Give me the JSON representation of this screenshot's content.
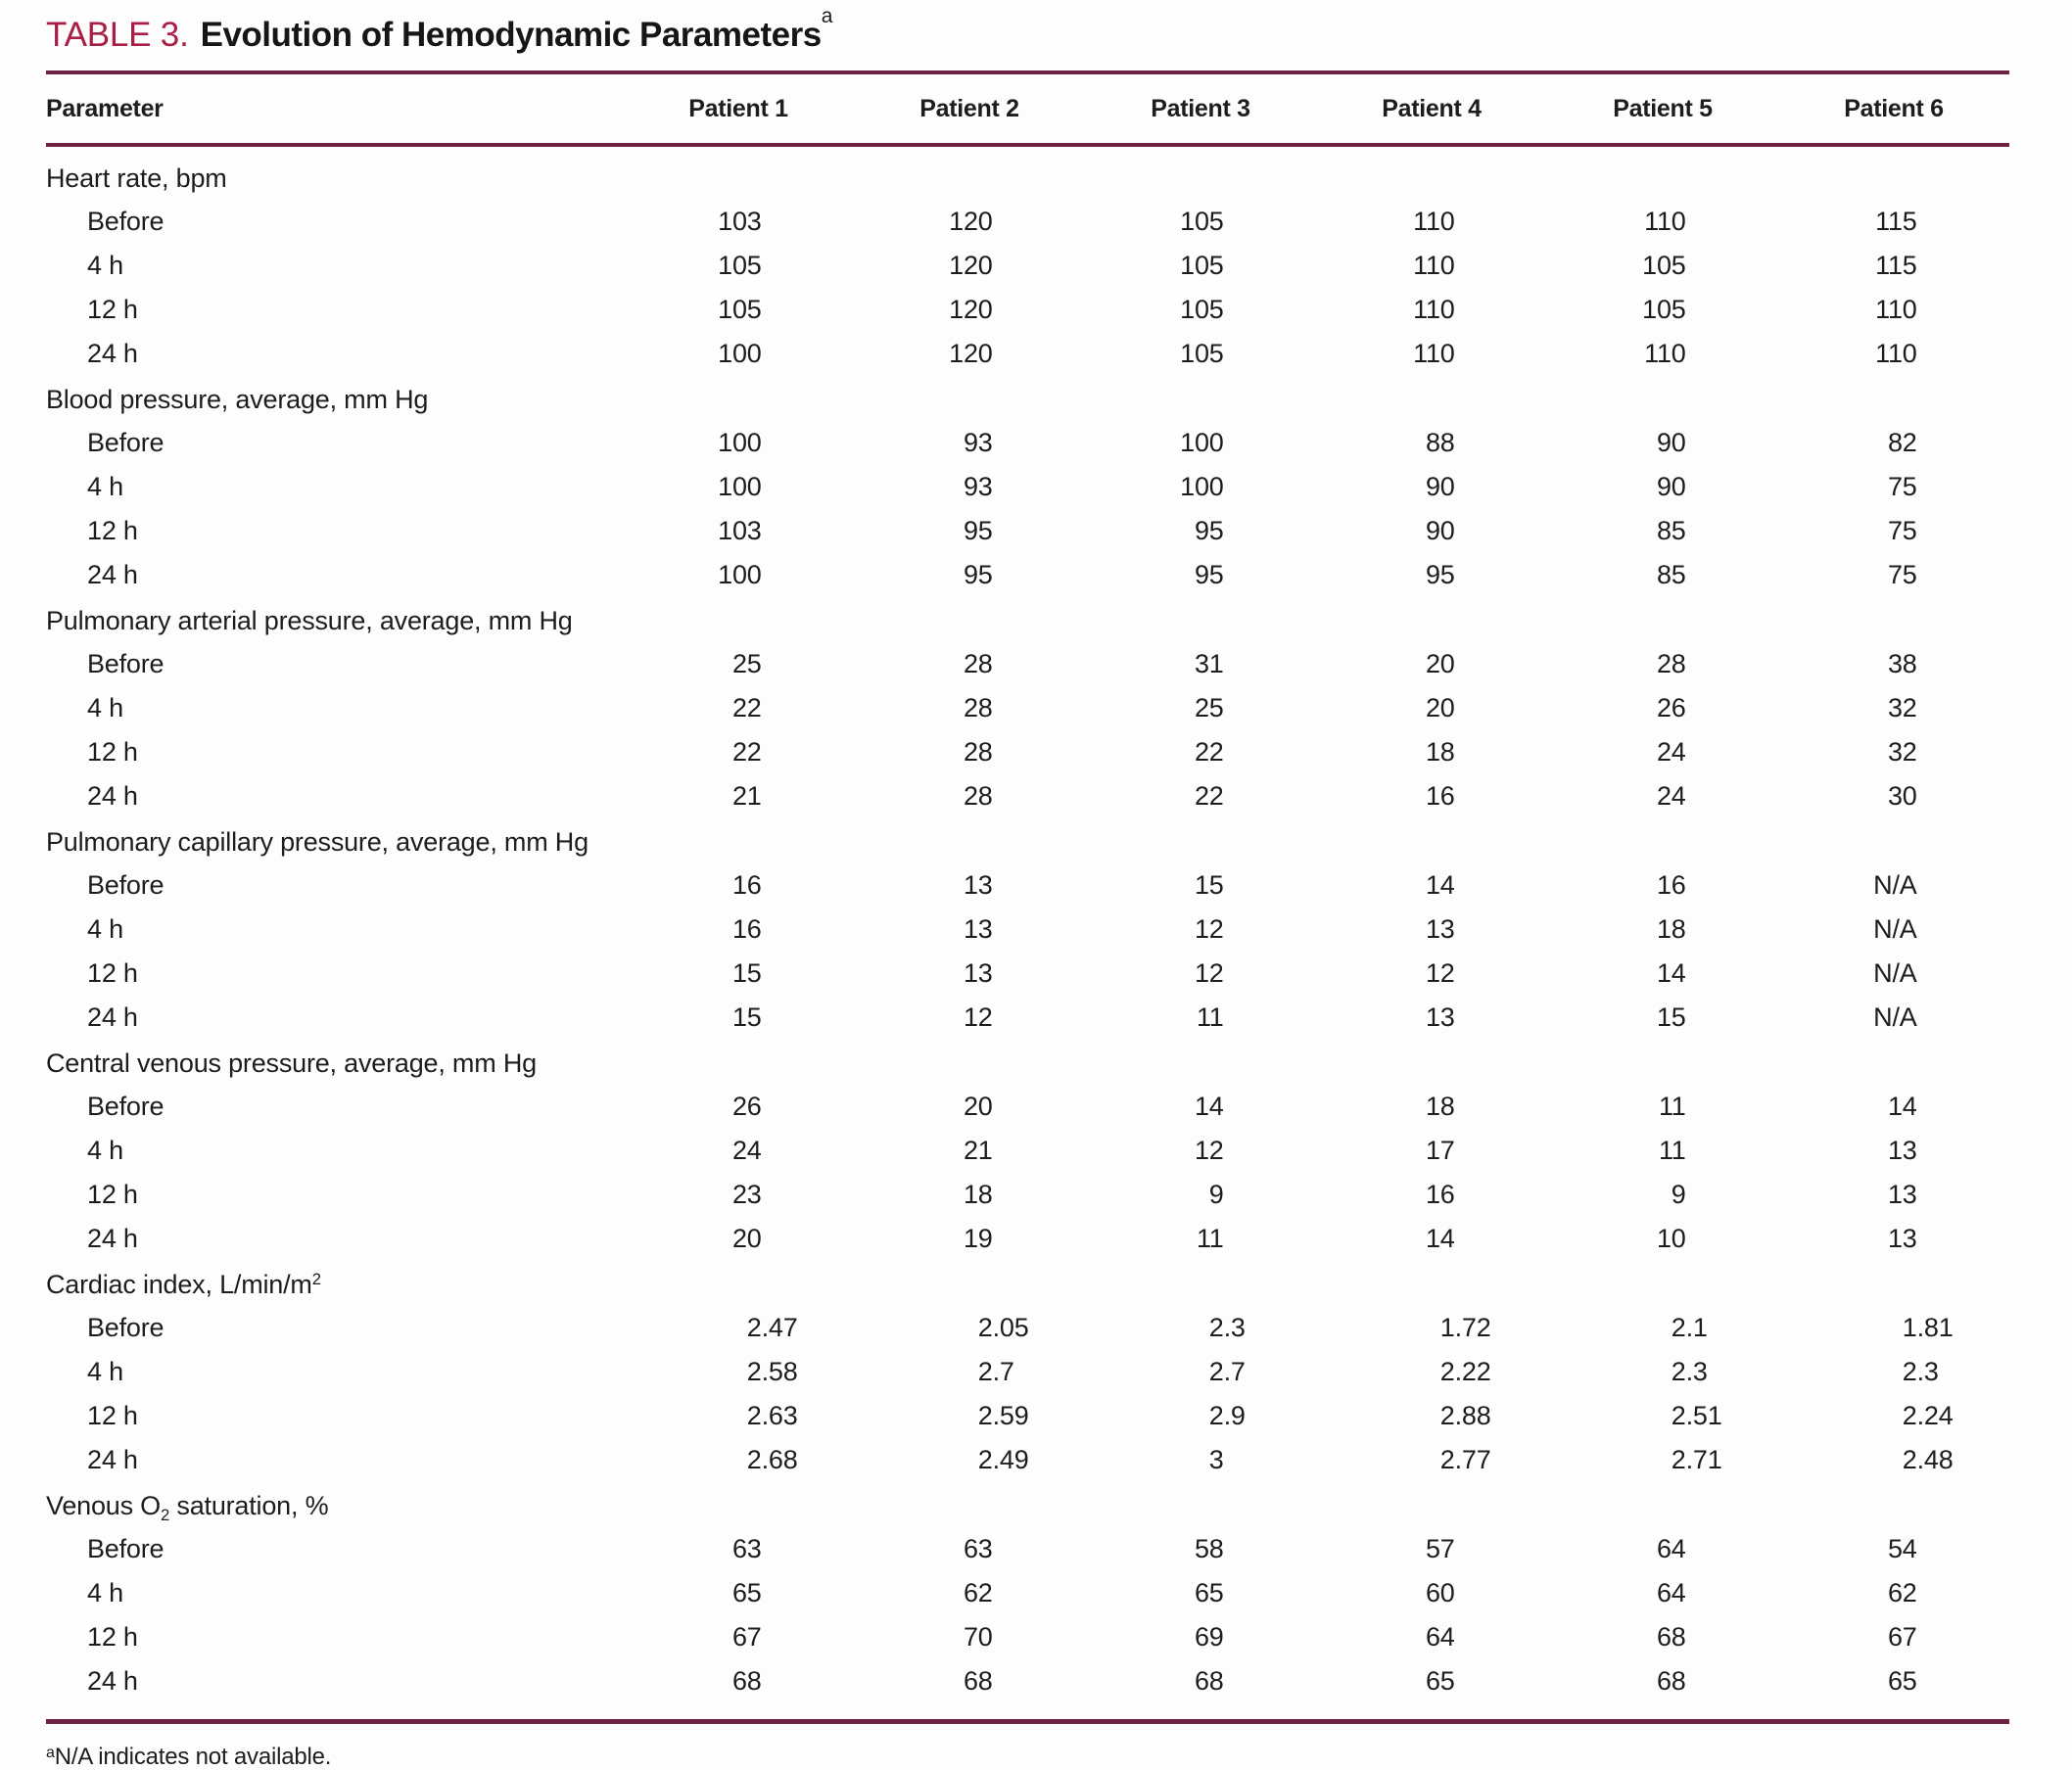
{
  "colors": {
    "accent_red": "#a91e45",
    "rule_maroon": "#6e2242",
    "text": "#1d1d1f",
    "background": "#fdfdfe"
  },
  "title": {
    "label": "TABLE 3.",
    "text": "Evolution of Hemodynamic Parameters",
    "footnote_marker": "a"
  },
  "table": {
    "columns": [
      "Parameter",
      "Patient 1",
      "Patient 2",
      "Patient 3",
      "Patient 4",
      "Patient 5",
      "Patient 6"
    ],
    "sections": [
      {
        "name_pre": "Heart rate, bpm",
        "name_sub": "",
        "name_sup": "",
        "name_post": "",
        "rows": [
          {
            "label": "Before",
            "values": [
              "103",
              "120",
              "105",
              "110",
              "110",
              "115"
            ]
          },
          {
            "label": "4 h",
            "values": [
              "105",
              "120",
              "105",
              "110",
              "105",
              "115"
            ]
          },
          {
            "label": "12 h",
            "values": [
              "105",
              "120",
              "105",
              "110",
              "105",
              "110"
            ]
          },
          {
            "label": "24 h",
            "values": [
              "100",
              "120",
              "105",
              "110",
              "110",
              "110"
            ]
          }
        ]
      },
      {
        "name_pre": "Blood pressure, average, mm Hg",
        "name_sub": "",
        "name_sup": "",
        "name_post": "",
        "rows": [
          {
            "label": "Before",
            "values": [
              "100",
              "93",
              "100",
              "88",
              "90",
              "82"
            ]
          },
          {
            "label": "4 h",
            "values": [
              "100",
              "93",
              "100",
              "90",
              "90",
              "75"
            ]
          },
          {
            "label": "12 h",
            "values": [
              "103",
              "95",
              "95",
              "90",
              "85",
              "75"
            ]
          },
          {
            "label": "24 h",
            "values": [
              "100",
              "95",
              "95",
              "95",
              "85",
              "75"
            ]
          }
        ]
      },
      {
        "name_pre": "Pulmonary arterial pressure, average, mm Hg",
        "name_sub": "",
        "name_sup": "",
        "name_post": "",
        "rows": [
          {
            "label": "Before",
            "values": [
              "25",
              "28",
              "31",
              "20",
              "28",
              "38"
            ]
          },
          {
            "label": "4 h",
            "values": [
              "22",
              "28",
              "25",
              "20",
              "26",
              "32"
            ]
          },
          {
            "label": "12 h",
            "values": [
              "22",
              "28",
              "22",
              "18",
              "24",
              "32"
            ]
          },
          {
            "label": "24 h",
            "values": [
              "21",
              "28",
              "22",
              "16",
              "24",
              "30"
            ]
          }
        ]
      },
      {
        "name_pre": "Pulmonary capillary pressure, average, mm Hg",
        "name_sub": "",
        "name_sup": "",
        "name_post": "",
        "rows": [
          {
            "label": "Before",
            "values": [
              "16",
              "13",
              "15",
              "14",
              "16",
              "N/A"
            ]
          },
          {
            "label": "4 h",
            "values": [
              "16",
              "13",
              "12",
              "13",
              "18",
              "N/A"
            ]
          },
          {
            "label": "12 h",
            "values": [
              "15",
              "13",
              "12",
              "12",
              "14",
              "N/A"
            ]
          },
          {
            "label": "24 h",
            "values": [
              "15",
              "12",
              "11",
              "13",
              "15",
              "N/A"
            ]
          }
        ]
      },
      {
        "name_pre": "Central venous pressure, average, mm Hg",
        "name_sub": "",
        "name_sup": "",
        "name_post": "",
        "rows": [
          {
            "label": "Before",
            "values": [
              "26",
              "20",
              "14",
              "18",
              "11",
              "14"
            ]
          },
          {
            "label": "4 h",
            "values": [
              "24",
              "21",
              "12",
              "17",
              "11",
              "13"
            ]
          },
          {
            "label": "12 h",
            "values": [
              "23",
              "18",
              "9",
              "16",
              "9",
              "13"
            ]
          },
          {
            "label": "24 h",
            "values": [
              "20",
              "19",
              "11",
              "14",
              "10",
              "13"
            ]
          }
        ]
      },
      {
        "name_pre": "Cardiac index, L/min/m",
        "name_sub": "",
        "name_sup": "2",
        "name_post": "",
        "rows": [
          {
            "label": "Before",
            "values": [
              "2.47",
              "2.05",
              "2.3",
              "1.72",
              "2.1",
              "1.81"
            ]
          },
          {
            "label": "4 h",
            "values": [
              "2.58",
              "2.7",
              "2.7",
              "2.22",
              "2.3",
              "2.3"
            ]
          },
          {
            "label": "12 h",
            "values": [
              "2.63",
              "2.59",
              "2.9",
              "2.88",
              "2.51",
              "2.24"
            ]
          },
          {
            "label": "24 h",
            "values": [
              "2.68",
              "2.49",
              "3",
              "2.77",
              "2.71",
              "2.48"
            ]
          }
        ]
      },
      {
        "name_pre": "Venous O",
        "name_sub": "2",
        "name_sup": "",
        "name_post": " saturation, %",
        "rows": [
          {
            "label": "Before",
            "values": [
              "63",
              "63",
              "58",
              "57",
              "64",
              "54"
            ]
          },
          {
            "label": "4 h",
            "values": [
              "65",
              "62",
              "65",
              "60",
              "64",
              "62"
            ]
          },
          {
            "label": "12 h",
            "values": [
              "67",
              "70",
              "69",
              "64",
              "68",
              "67"
            ]
          },
          {
            "label": "24 h",
            "values": [
              "68",
              "68",
              "68",
              "65",
              "68",
              "65"
            ]
          }
        ]
      }
    ]
  },
  "footnote": {
    "marker": "a",
    "text": "N/A indicates not available."
  }
}
